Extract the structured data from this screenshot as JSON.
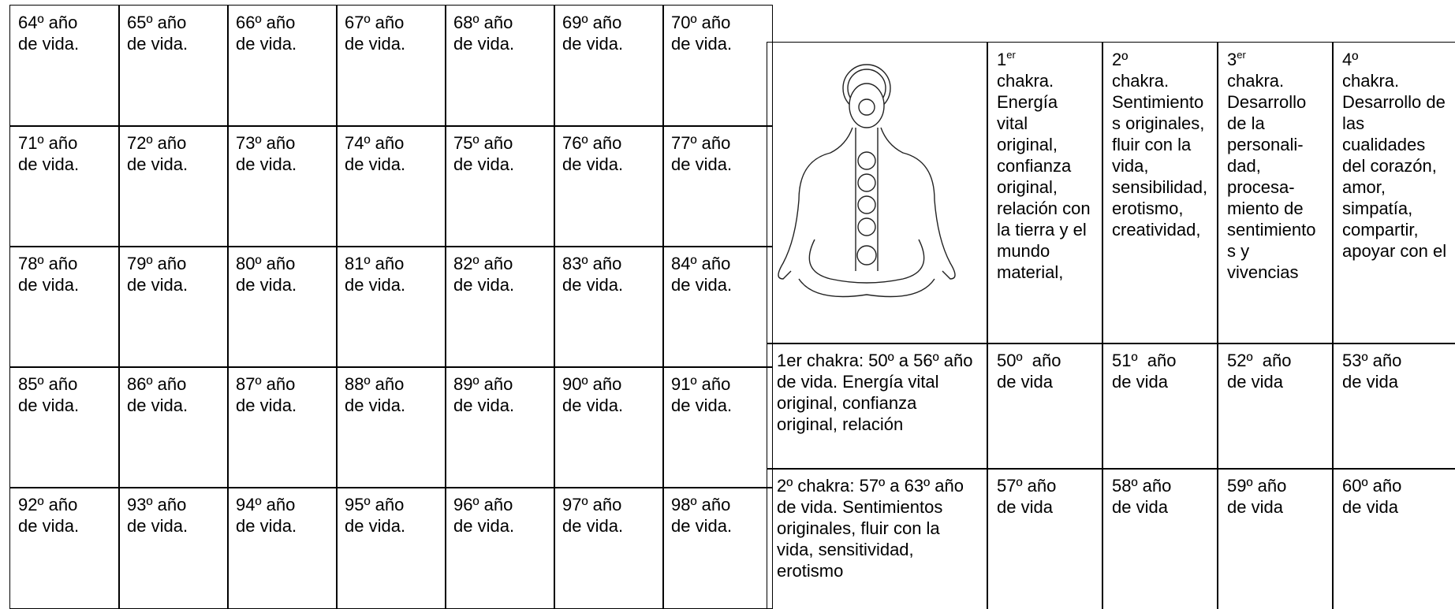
{
  "left_table": {
    "rows": [
      [
        "64º año de vida.",
        "65º año de vida.",
        "66º año de vida.",
        "67º año de vida.",
        "68º año de vida.",
        "69º año de vida.",
        "70º año de vida."
      ],
      [
        "71º año de vida.",
        "72º año de vida.",
        "73º año de vida.",
        "74º año de vida.",
        "75º año de vida.",
        "76º año de vida.",
        "77º año de vida."
      ],
      [
        "78º año de vida.",
        "79º año de vida.",
        "80º año de vida.",
        "81º año de vida.",
        "82º año de vida.",
        "83º año de vida.",
        "84º año de vida."
      ],
      [
        "85º año de vida.",
        "86º año de vida.",
        "87º año de vida.",
        "88º año de vida.",
        "89º año de vida.",
        "90º año de vida.",
        "91º año de vida."
      ],
      [
        "92º año de vida.",
        "93º año de vida.",
        "94º año de vida.",
        "95º año de vida.",
        "96º año de vida.",
        "97º año de vida.",
        "98º año de vida."
      ]
    ]
  },
  "right_table": {
    "header": [
      {
        "prefix": "1",
        "sup": "er",
        "body": "chakra. Energía vital original, confianza original, relación con la tierra y el mundo material,"
      },
      {
        "prefix": "2º",
        "sup": "",
        "body": "chakra. Sentimientos originales, fluir con la vida, sensibilidad, erotismo, creatividad,"
      },
      {
        "prefix": "3",
        "sup": "er",
        "body": "chakra. Desarrollo de la personali-dad, procesa-miento de sentimientos y vivencias"
      },
      {
        "prefix": "4º",
        "sup": "",
        "body": "chakra. Desarrollo de las cualidades del corazón, amor, simpatía, compartir, apoyar con el"
      }
    ],
    "rows": [
      {
        "label": "1er chakra: 50º a 56º año de vida. Energía vital original, confianza original, relación",
        "cells": [
          "50º  año de vida",
          "51º  año de vida",
          "52º  año de vida",
          "53º año de vida"
        ]
      },
      {
        "label": "2º chakra:  57º a 63º año de vida. Sentimientos originales, fluir con la vida, sensitividad, erotismo",
        "cells": [
          "57º año de vida",
          "58º año de vida",
          "59º año de vida",
          "60º año de vida"
        ]
      }
    ]
  }
}
